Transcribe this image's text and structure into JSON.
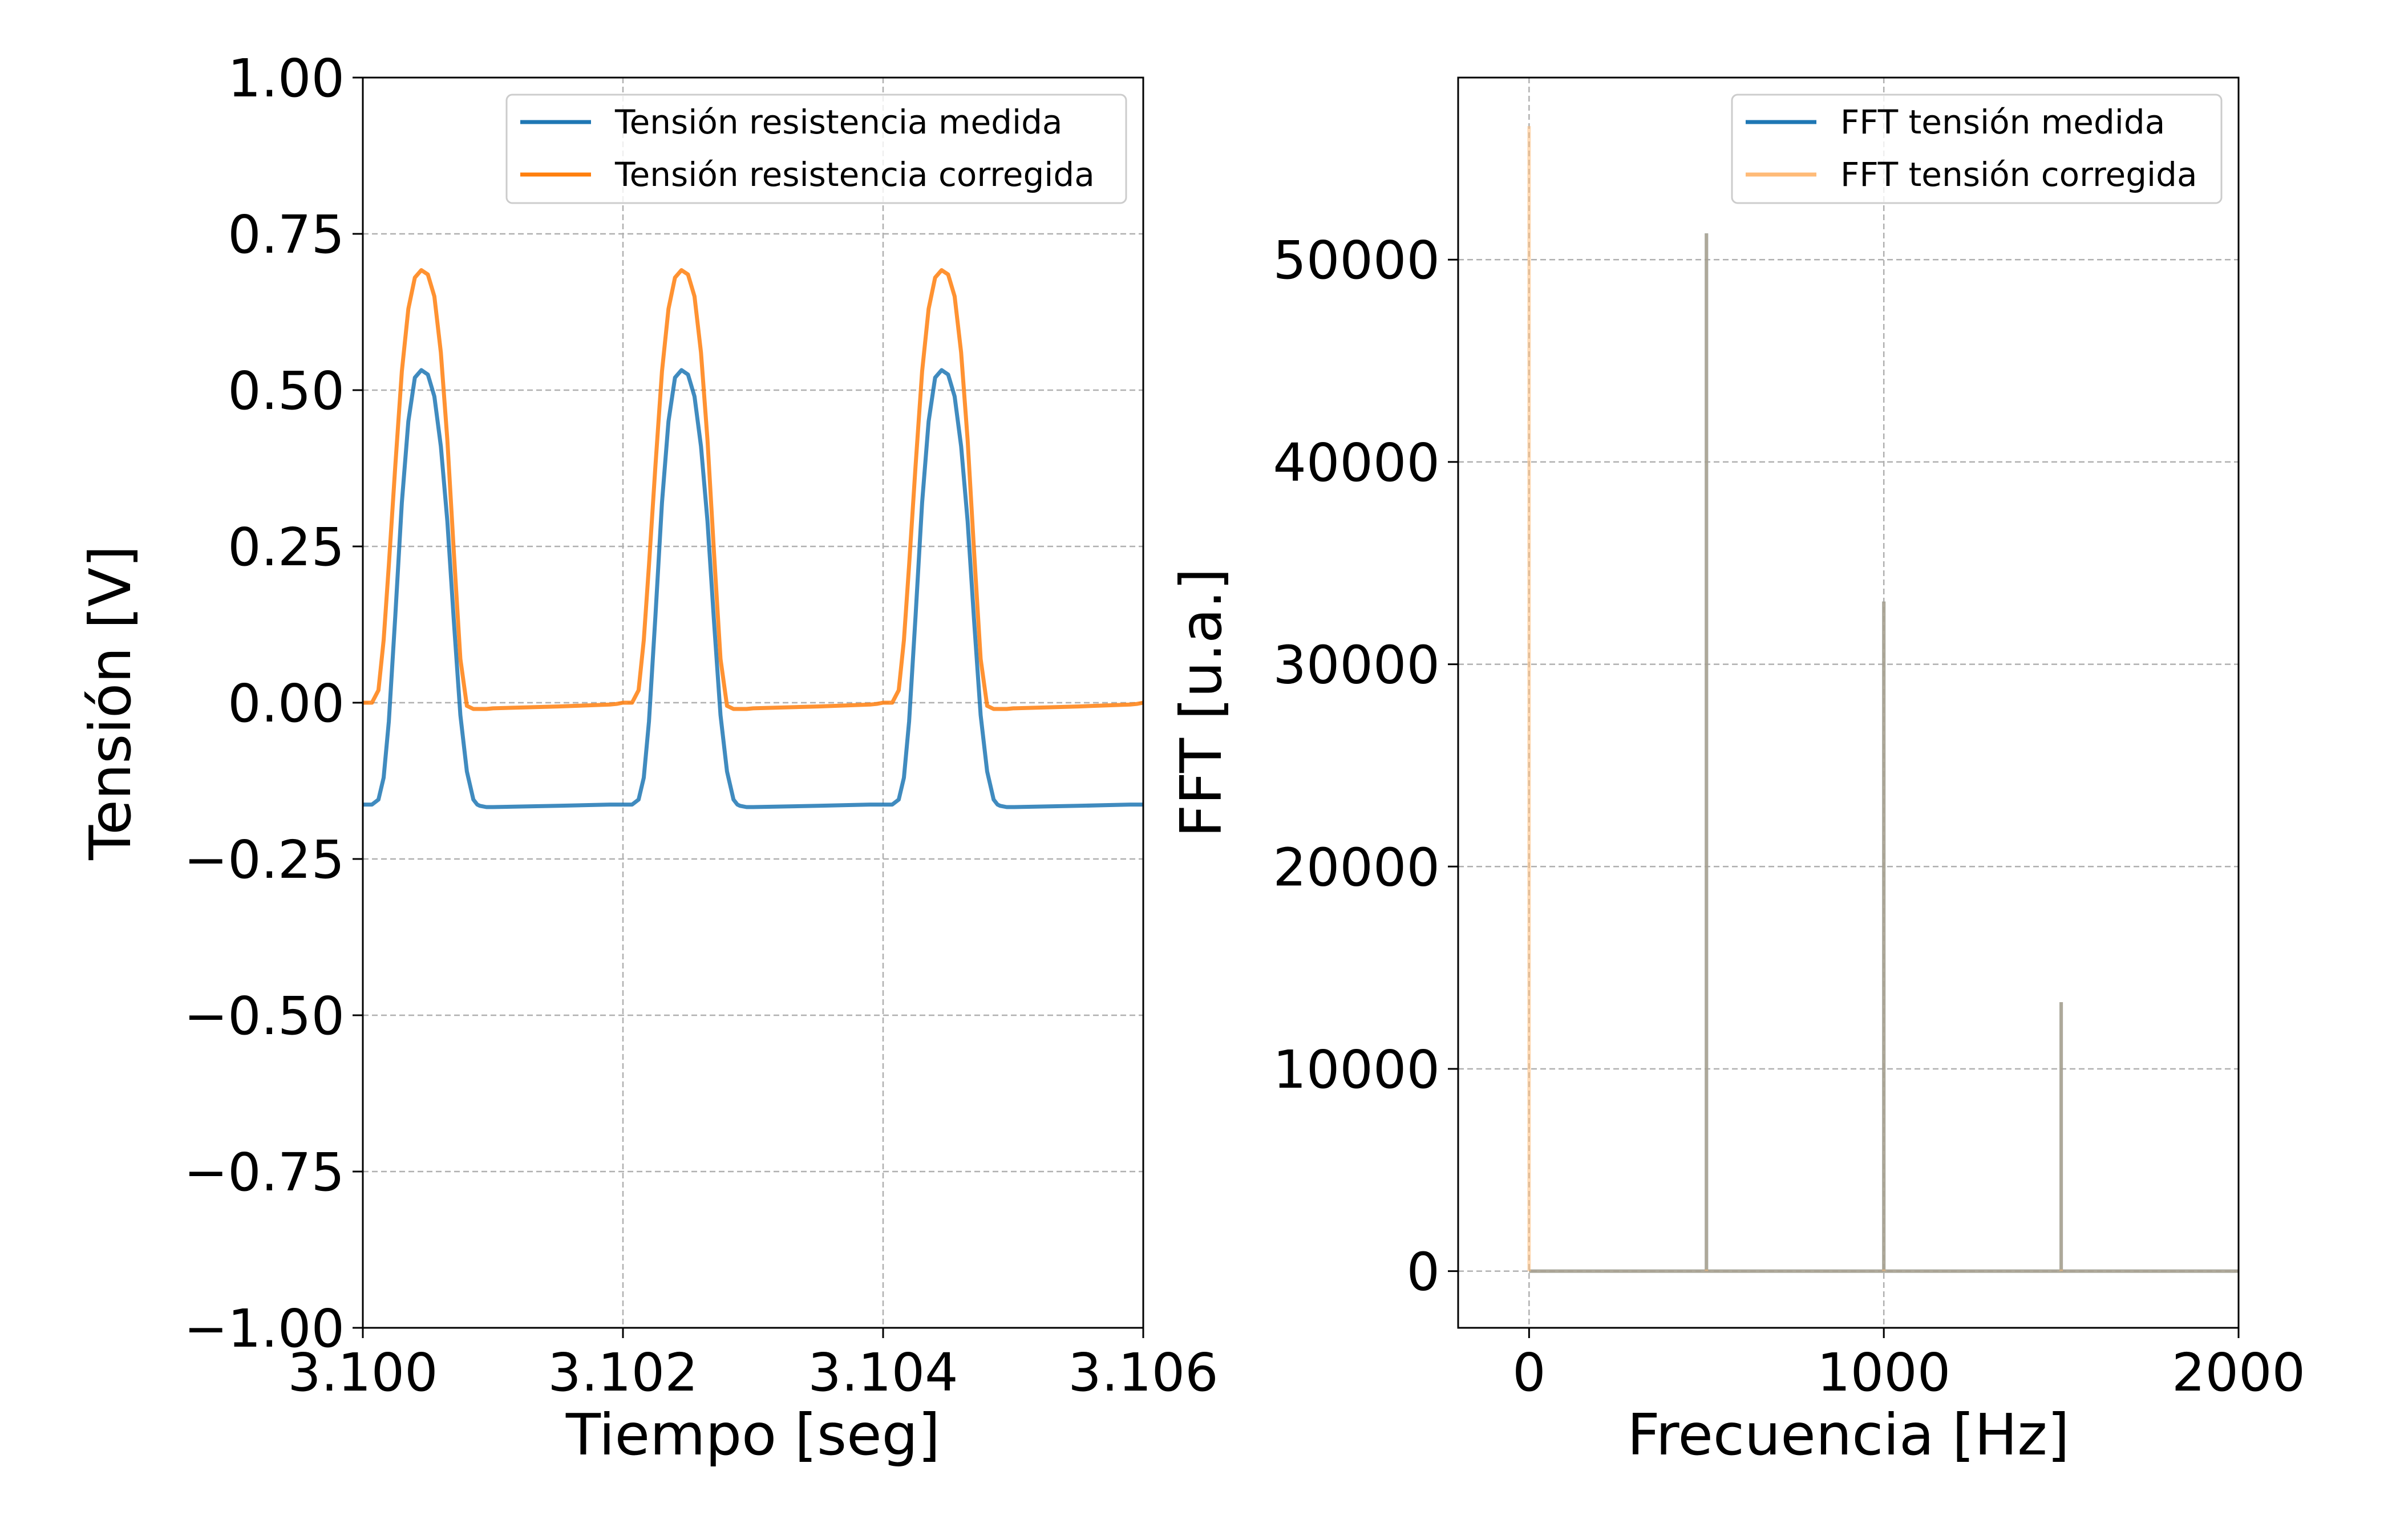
{
  "chart_data": [
    {
      "type": "line",
      "title": "",
      "xlabel": "Tiempo [seg]",
      "ylabel": "Tensión [V]",
      "xlim": [
        3.1,
        3.106
      ],
      "ylim": [
        -1.0,
        1.0
      ],
      "xticks": [
        "3.100",
        "3.102",
        "3.104",
        "3.106"
      ],
      "xtick_values": [
        3.1,
        3.102,
        3.104,
        3.106
      ],
      "yticks": [
        "1.00",
        "0.75",
        "0.50",
        "0.25",
        "0.00",
        "−0.25",
        "−0.50",
        "−0.75",
        "−1.00"
      ],
      "ytick_values": [
        1.0,
        0.75,
        0.5,
        0.25,
        0.0,
        -0.25,
        -0.5,
        -0.75,
        -1.0
      ],
      "grid": true,
      "legend_position": "top-right",
      "period": 0.002,
      "series": [
        {
          "name": "Tensión resistencia medida",
          "color": "#1f77b4",
          "x": [
            3.1,
            3.10007,
            3.10012,
            3.10016,
            3.1002,
            3.10025,
            3.1003,
            3.10035,
            3.1004,
            3.10045,
            3.1005,
            3.10055,
            3.1006,
            3.10065,
            3.1007,
            3.10075,
            3.1008,
            3.10085,
            3.10088,
            3.1009,
            3.10095,
            3.101,
            3.1015,
            3.1019,
            3.10195,
            3.102
          ],
          "y": [
            -0.163,
            -0.163,
            -0.155,
            -0.12,
            -0.03,
            0.14,
            0.32,
            0.45,
            0.52,
            0.532,
            0.525,
            0.49,
            0.41,
            0.29,
            0.13,
            -0.02,
            -0.11,
            -0.155,
            -0.163,
            -0.165,
            -0.167,
            -0.167,
            -0.165,
            -0.163,
            -0.163,
            -0.163
          ]
        },
        {
          "name": "Tensión resistencia corregida",
          "color": "#ff7f0e",
          "x": [
            3.1,
            3.10007,
            3.10012,
            3.10016,
            3.1002,
            3.10025,
            3.1003,
            3.10035,
            3.1004,
            3.10045,
            3.1005,
            3.10055,
            3.1006,
            3.10065,
            3.1007,
            3.10075,
            3.1008,
            3.10085,
            3.10088,
            3.1009,
            3.10095,
            3.101,
            3.1015,
            3.1019,
            3.10195,
            3.102
          ],
          "y": [
            0.0,
            0.0,
            0.02,
            0.1,
            0.22,
            0.38,
            0.53,
            0.63,
            0.68,
            0.692,
            0.685,
            0.65,
            0.56,
            0.42,
            0.24,
            0.07,
            -0.005,
            -0.01,
            -0.01,
            -0.01,
            -0.01,
            -0.009,
            -0.006,
            -0.003,
            -0.002,
            0.0
          ]
        }
      ]
    },
    {
      "type": "line",
      "title": "",
      "xlabel": "Frecuencia [Hz]",
      "ylabel": "FFT [u.a.]",
      "xlim": [
        -200,
        2000
      ],
      "ylim": [
        -2800,
        59000
      ],
      "xticks": [
        "0",
        "1000",
        "2000"
      ],
      "xtick_values": [
        0,
        1000,
        2000
      ],
      "yticks": [
        "0",
        "10000",
        "20000",
        "30000",
        "40000",
        "50000"
      ],
      "ytick_values": [
        0,
        10000,
        20000,
        30000,
        40000,
        50000
      ],
      "grid": true,
      "legend_position": "top-right",
      "series": [
        {
          "name": "FFT tensión medida",
          "color": "#1f77b4",
          "x": [
            0,
            500,
            1000,
            1500
          ],
          "y": [
            0,
            51300,
            33100,
            13300
          ]
        },
        {
          "name": "FFT tensión corregida",
          "color": "#ffbb78",
          "x": [
            0,
            500,
            1000,
            1500
          ],
          "y": [
            56600,
            51300,
            33100,
            13300
          ]
        }
      ]
    }
  ]
}
